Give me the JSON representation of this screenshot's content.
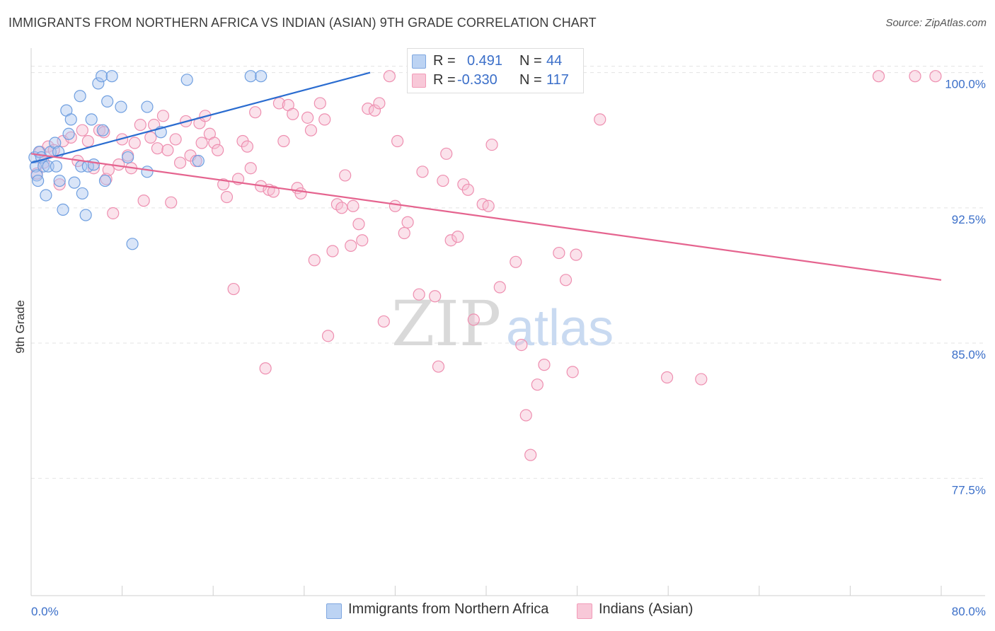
{
  "title": "IMMIGRANTS FROM NORTHERN AFRICA VS INDIAN (ASIAN) 9TH GRADE CORRELATION CHART",
  "source": "Source: ZipAtlas.com",
  "watermark": {
    "zip": "ZIP",
    "atlas": "atlas"
  },
  "legend_stats": {
    "r_label": "R =",
    "n_label": "N =",
    "blue": {
      "r": "0.491",
      "n": "44",
      "color": "#7fa7e0"
    },
    "pink": {
      "r": "-0.330",
      "n": "117",
      "color": "#f29bb8"
    }
  },
  "chart_data": {
    "type": "scatter",
    "title": "IMMIGRANTS FROM NORTHERN AFRICA VS INDIAN (ASIAN) 9TH GRADE CORRELATION CHART",
    "xlabel": "",
    "ylabel": "9th Grade",
    "xlim": [
      0,
      80
    ],
    "ylim": [
      71,
      101.2
    ],
    "x_tick_labels": [
      "0.0%",
      "80.0%"
    ],
    "y_ticks": [
      77.5,
      85.0,
      92.5,
      100.0
    ],
    "y_tick_labels": [
      "77.5%",
      "85.0%",
      "92.5%",
      "100.0%"
    ],
    "grid": true,
    "legend_position": "bottom",
    "series": [
      {
        "name": "Immigrants from Northern Africa",
        "color": "#6f9fe0",
        "fill": "#aac6ef",
        "trend": {
          "x": [
            0.0,
            29.8
          ],
          "y": [
            95.0,
            100.0
          ],
          "color": "#2a6cd0"
        },
        "points": [
          [
            0.3,
            95.3
          ],
          [
            0.4,
            94.8
          ],
          [
            0.5,
            94.3
          ],
          [
            0.6,
            94.0
          ],
          [
            0.7,
            95.6
          ],
          [
            0.9,
            95.3
          ],
          [
            1.1,
            94.8
          ],
          [
            1.3,
            93.2
          ],
          [
            1.5,
            94.8
          ],
          [
            1.7,
            95.6
          ],
          [
            2.1,
            96.1
          ],
          [
            2.2,
            94.8
          ],
          [
            2.5,
            94.0
          ],
          [
            2.4,
            95.6
          ],
          [
            2.8,
            92.4
          ],
          [
            3.1,
            97.9
          ],
          [
            3.3,
            96.6
          ],
          [
            3.5,
            97.4
          ],
          [
            3.8,
            93.9
          ],
          [
            4.3,
            98.7
          ],
          [
            4.4,
            94.8
          ],
          [
            4.5,
            93.3
          ],
          [
            4.8,
            92.1
          ],
          [
            5.0,
            94.8
          ],
          [
            5.3,
            97.4
          ],
          [
            5.5,
            94.9
          ],
          [
            5.9,
            99.4
          ],
          [
            6.2,
            99.8
          ],
          [
            6.3,
            96.8
          ],
          [
            6.5,
            94.0
          ],
          [
            6.7,
            98.4
          ],
          [
            7.1,
            99.8
          ],
          [
            7.9,
            98.1
          ],
          [
            8.5,
            95.3
          ],
          [
            8.9,
            90.5
          ],
          [
            10.2,
            98.1
          ],
          [
            10.2,
            94.5
          ],
          [
            11.4,
            96.7
          ],
          [
            13.7,
            99.6
          ],
          [
            14.7,
            95.1
          ],
          [
            19.3,
            99.8
          ],
          [
            20.2,
            99.8
          ],
          [
            38.1,
            99.8
          ],
          [
            39.7,
            99.8
          ]
        ]
      },
      {
        "name": "Indians (Asian)",
        "color": "#ee8fb0",
        "fill": "#f6bfd2",
        "trend": {
          "x": [
            0.0,
            80.0
          ],
          "y": [
            95.5,
            88.5
          ],
          "color": "#e5648f"
        },
        "points": [
          [
            0.5,
            94.4
          ],
          [
            0.8,
            95.6
          ],
          [
            1.1,
            95.0
          ],
          [
            1.5,
            95.9
          ],
          [
            2.0,
            95.7
          ],
          [
            2.5,
            93.8
          ],
          [
            2.8,
            96.2
          ],
          [
            3.5,
            96.4
          ],
          [
            4.1,
            95.1
          ],
          [
            4.5,
            96.8
          ],
          [
            5.0,
            96.2
          ],
          [
            5.5,
            94.7
          ],
          [
            6.0,
            96.8
          ],
          [
            6.4,
            96.7
          ],
          [
            6.6,
            94.1
          ],
          [
            6.8,
            94.6
          ],
          [
            7.2,
            92.2
          ],
          [
            7.7,
            94.9
          ],
          [
            8.0,
            96.3
          ],
          [
            8.5,
            95.4
          ],
          [
            8.8,
            94.7
          ],
          [
            9.1,
            96.1
          ],
          [
            9.6,
            97.1
          ],
          [
            9.9,
            92.9
          ],
          [
            10.5,
            96.4
          ],
          [
            10.8,
            97.1
          ],
          [
            11.1,
            95.8
          ],
          [
            11.6,
            97.6
          ],
          [
            12.0,
            95.7
          ],
          [
            12.3,
            92.8
          ],
          [
            12.7,
            96.3
          ],
          [
            13.1,
            95.0
          ],
          [
            13.6,
            97.3
          ],
          [
            14.0,
            95.4
          ],
          [
            14.5,
            95.1
          ],
          [
            14.8,
            97.2
          ],
          [
            15.0,
            96.1
          ],
          [
            15.3,
            97.6
          ],
          [
            15.7,
            96.6
          ],
          [
            16.1,
            96.1
          ],
          [
            16.4,
            95.7
          ],
          [
            16.9,
            93.8
          ],
          [
            17.2,
            93.1
          ],
          [
            17.8,
            88.0
          ],
          [
            18.2,
            94.1
          ],
          [
            18.6,
            96.2
          ],
          [
            19.0,
            95.9
          ],
          [
            19.3,
            94.7
          ],
          [
            19.7,
            97.8
          ],
          [
            20.2,
            93.7
          ],
          [
            20.6,
            83.6
          ],
          [
            20.9,
            93.5
          ],
          [
            21.3,
            93.4
          ],
          [
            21.8,
            98.3
          ],
          [
            22.2,
            96.2
          ],
          [
            22.6,
            98.2
          ],
          [
            23.0,
            97.7
          ],
          [
            23.4,
            93.6
          ],
          [
            23.7,
            93.3
          ],
          [
            24.3,
            97.5
          ],
          [
            24.6,
            96.8
          ],
          [
            24.9,
            89.6
          ],
          [
            25.4,
            98.3
          ],
          [
            25.8,
            97.4
          ],
          [
            26.1,
            85.4
          ],
          [
            26.5,
            90.1
          ],
          [
            26.9,
            92.7
          ],
          [
            27.3,
            92.5
          ],
          [
            27.6,
            94.3
          ],
          [
            28.1,
            90.4
          ],
          [
            28.3,
            92.6
          ],
          [
            28.8,
            91.6
          ],
          [
            29.1,
            90.7
          ],
          [
            29.6,
            98.0
          ],
          [
            30.2,
            97.9
          ],
          [
            30.6,
            98.3
          ],
          [
            31.0,
            86.2
          ],
          [
            31.5,
            99.8
          ],
          [
            32.0,
            92.6
          ],
          [
            32.2,
            96.2
          ],
          [
            32.8,
            91.1
          ],
          [
            33.1,
            91.7
          ],
          [
            34.4,
            94.5
          ],
          [
            34.1,
            87.7
          ],
          [
            35.5,
            87.6
          ],
          [
            35.8,
            83.7
          ],
          [
            36.2,
            94.0
          ],
          [
            36.5,
            95.5
          ],
          [
            36.9,
            90.7
          ],
          [
            37.5,
            90.9
          ],
          [
            38.0,
            93.8
          ],
          [
            38.4,
            93.5
          ],
          [
            38.9,
            86.3
          ],
          [
            39.7,
            92.7
          ],
          [
            40.2,
            92.6
          ],
          [
            40.5,
            96.0
          ],
          [
            41.2,
            88.1
          ],
          [
            42.6,
            89.5
          ],
          [
            43.1,
            84.9
          ],
          [
            43.5,
            81.0
          ],
          [
            43.9,
            78.8
          ],
          [
            44.5,
            82.7
          ],
          [
            45.1,
            83.8
          ],
          [
            45.8,
            99.8
          ],
          [
            46.4,
            90.0
          ],
          [
            47.0,
            88.5
          ],
          [
            47.6,
            83.4
          ],
          [
            47.9,
            89.9
          ],
          [
            50.0,
            97.4
          ],
          [
            55.9,
            83.1
          ],
          [
            58.9,
            83.0
          ],
          [
            74.5,
            99.8
          ],
          [
            77.7,
            99.8
          ],
          [
            79.5,
            99.8
          ]
        ]
      }
    ]
  }
}
